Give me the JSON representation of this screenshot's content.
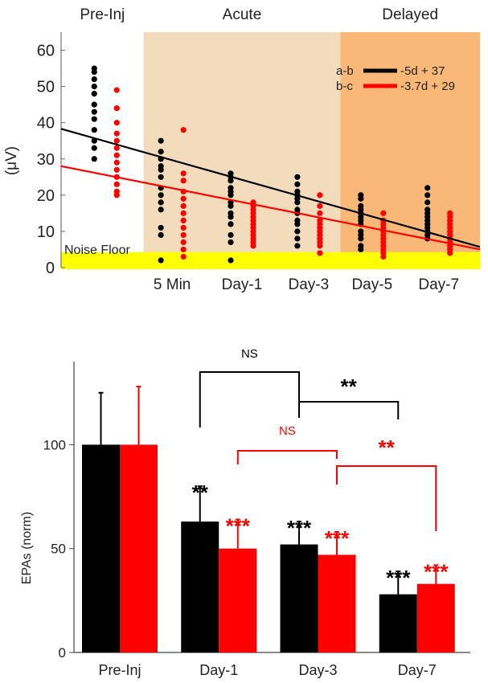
{
  "chart_data": [
    {
      "type": "scatter",
      "ylabel": "(μV)",
      "ylim": [
        0,
        65
      ],
      "yticks": [
        0,
        10,
        20,
        30,
        40,
        50,
        60
      ],
      "categories": [
        "Pre-Inj",
        "5 Min",
        "Day-1",
        "Day-3",
        "Day-5",
        "Day-7"
      ],
      "x_labels": [
        "5 Min",
        "Day-1",
        "Day-3",
        "Day-5",
        "Day-7"
      ],
      "x_positions": [
        0,
        1.05,
        2.15,
        3.2,
        4.2,
        5.25
      ],
      "x_range": [
        -0.7,
        5.9
      ],
      "phases": [
        {
          "label": "Pre-Inj",
          "x": [
            -0.7,
            0.6
          ],
          "color": "#ffffff"
        },
        {
          "label": "Acute",
          "x": [
            0.6,
            3.7
          ],
          "color": "#f3dcbc"
        },
        {
          "label": "Delayed",
          "x": [
            3.7,
            5.9
          ],
          "color": "#f9b878"
        }
      ],
      "noise_floor": {
        "label": "Noise Floor",
        "y": [
          0,
          2.5
        ],
        "color": "#ffff00"
      },
      "series": [
        {
          "name": "a-b",
          "color": "#000000",
          "fit": "-5d + 37",
          "fit_line": {
            "x": [
              -0.7,
              5.9
            ],
            "y": [
              38.3,
              5.7
            ]
          },
          "points": [
            [
              55,
              54,
              52,
              50,
              48,
              45,
              43,
              41,
              38,
              35,
              33,
              30
            ],
            [
              35,
              32,
              30,
              28,
              27,
              25,
              22,
              20,
              18,
              16,
              11,
              9,
              2
            ],
            [
              26,
              25,
              24,
              22,
              21,
              20,
              18,
              17,
              15,
              14,
              12,
              9,
              7,
              2
            ],
            [
              25,
              23,
              21,
              20,
              19,
              18,
              16,
              15,
              13,
              12,
              10,
              8,
              6
            ],
            [
              20,
              19,
              17,
              16,
              15,
              14,
              13,
              12,
              10,
              9,
              8,
              6,
              5
            ],
            [
              22,
              20,
              18,
              16,
              15,
              14,
              13,
              12,
              11,
              10,
              9,
              8
            ]
          ]
        },
        {
          "name": "b-c",
          "color": "#ff0000",
          "fit": "-3.7d + 29",
          "fit_line": {
            "x": [
              -0.7,
              5.9
            ],
            "y": [
              28.0,
              5.0
            ]
          },
          "points": [
            [
              49,
              44,
              40,
              37,
              35,
              33,
              31,
              29,
              27,
              25,
              23,
              21,
              20
            ],
            [
              38,
              26,
              24,
              21,
              19,
              17,
              15,
              13,
              11,
              9,
              7,
              5,
              3
            ],
            [
              18,
              17,
              16,
              15,
              14,
              13,
              12,
              11,
              10,
              9,
              8,
              7,
              6
            ],
            [
              20,
              17,
              15,
              13,
              12,
              11,
              10,
              9,
              8,
              7,
              6,
              4
            ],
            [
              15,
              13,
              12,
              11,
              10,
              9,
              8,
              7,
              6,
              5,
              4,
              3
            ],
            [
              15,
              14,
              13,
              12,
              11,
              10,
              9,
              8,
              7,
              6,
              5,
              4
            ]
          ]
        }
      ]
    },
    {
      "type": "bar",
      "ylabel": "EPAs (norm)",
      "ylim": [
        0,
        140
      ],
      "yticks": [
        0,
        50,
        100
      ],
      "categories": [
        "Pre-Inj",
        "Day-1",
        "Day-3",
        "Day-7"
      ],
      "series": [
        {
          "name": "black",
          "color": "#000000",
          "values": [
            100,
            63,
            52,
            28
          ],
          "errors": [
            25,
            17,
            11,
            11
          ]
        },
        {
          "name": "red",
          "color": "#ff0000",
          "values": [
            100,
            50,
            47,
            33
          ],
          "errors": [
            28,
            14,
            11,
            9
          ]
        }
      ],
      "significance": [
        {
          "series": 0,
          "category": 1,
          "label": "**"
        },
        {
          "series": 1,
          "category": 1,
          "label": "***"
        },
        {
          "series": 0,
          "category": 2,
          "label": "***"
        },
        {
          "series": 1,
          "category": 2,
          "label": "***"
        },
        {
          "series": 0,
          "category": 3,
          "label": "***"
        },
        {
          "series": 1,
          "category": 3,
          "label": "***"
        }
      ],
      "comparisons": [
        {
          "series": 0,
          "from": 1,
          "to": 2,
          "label": "NS",
          "color": "#000000"
        },
        {
          "series": 0,
          "from": 2,
          "to": 3,
          "label": "**",
          "color": "#000000"
        },
        {
          "series": 1,
          "from": 1,
          "to": 2,
          "label": "NS",
          "color": "#ff0000"
        },
        {
          "series": 1,
          "from": 2,
          "to": 3,
          "label": "**",
          "color": "#ff0000"
        }
      ]
    }
  ]
}
